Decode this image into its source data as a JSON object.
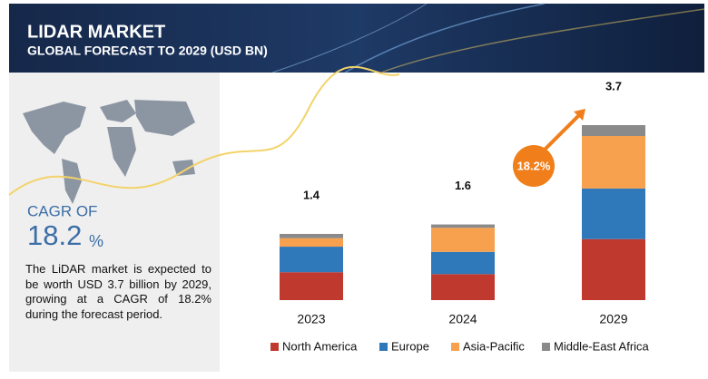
{
  "header": {
    "title": "LIDAR MARKET",
    "subtitle": "GLOBAL FORECAST TO 2029 (USD BN)"
  },
  "sidebar": {
    "cagr_label": "CAGR OF",
    "cagr_value": "18.2",
    "cagr_unit": "%",
    "description": "The LiDAR market is expected to be worth USD 3.7 billion by 2029, growing at a CAGR of 18.2% during the forecast period."
  },
  "chart_data": {
    "type": "stacked-bar",
    "categories": [
      "2023",
      "2024",
      "2029"
    ],
    "totals": [
      1.4,
      1.6,
      3.7
    ],
    "annotation": "18.2%",
    "series": [
      {
        "name": "North America",
        "color": "#c0392f",
        "values": [
          0.59,
          0.55,
          1.29
        ]
      },
      {
        "name": "Europe",
        "color": "#2f78b9",
        "values": [
          0.54,
          0.47,
          1.07
        ]
      },
      {
        "name": "Asia-Pacific",
        "color": "#f7a04e",
        "values": [
          0.18,
          0.51,
          1.11
        ]
      },
      {
        "name": "Middle-East Africa",
        "color": "#8a8a8a",
        "values": [
          0.09,
          0.07,
          0.23
        ]
      }
    ]
  }
}
